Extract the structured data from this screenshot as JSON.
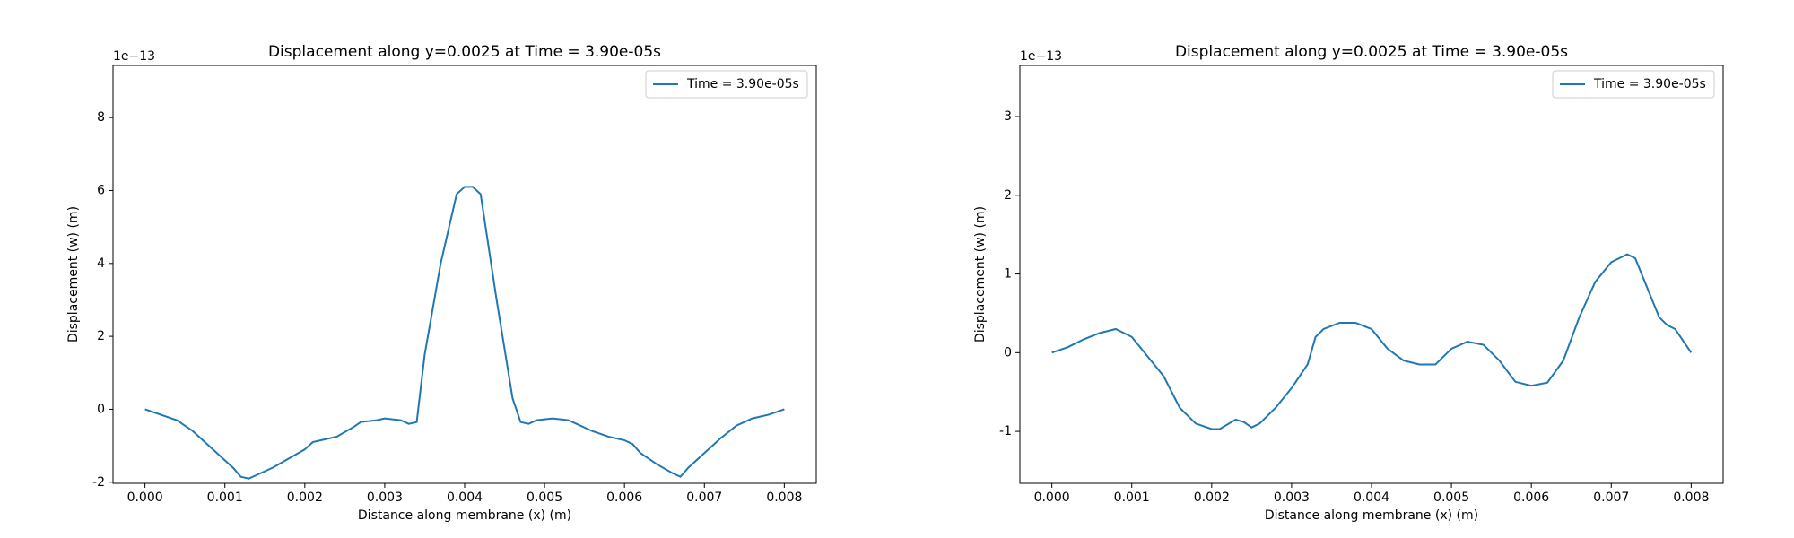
{
  "chart_data": [
    {
      "type": "line",
      "title": "Displacement along y=0.0025 at Time = 3.90e-05s",
      "xlabel": "Distance along membrane (x) (m)",
      "ylabel": "Displacement (w) (m)",
      "y_offset_label": "1e−13",
      "legend": "upper right",
      "xlim": [
        -0.0004,
        0.0084
      ],
      "ylim": [
        -2.03,
        9.43
      ],
      "xticks": [
        {
          "value": 0,
          "label": "0.000"
        },
        {
          "value": 0.001,
          "label": "0.001"
        },
        {
          "value": 0.002,
          "label": "0.002"
        },
        {
          "value": 0.003,
          "label": "0.003"
        },
        {
          "value": 0.004,
          "label": "0.004"
        },
        {
          "value": 0.005,
          "label": "0.005"
        },
        {
          "value": 0.006,
          "label": "0.006"
        },
        {
          "value": 0.007,
          "label": "0.007"
        },
        {
          "value": 0.008,
          "label": "0.008"
        }
      ],
      "yticks": [
        -2,
        0,
        2,
        4,
        6,
        8
      ],
      "x": [
        0,
        0.0002,
        0.0004,
        0.0006,
        0.0008,
        0.001,
        0.0011,
        0.0012,
        0.0013,
        0.0014,
        0.0016,
        0.0018,
        0.002,
        0.0021,
        0.0022,
        0.0024,
        0.0026,
        0.0027,
        0.0029,
        0.003,
        0.0032,
        0.0033,
        0.0034,
        0.0035,
        0.0037,
        0.0039,
        0.004,
        0.0041,
        0.0042,
        0.0044,
        0.0046,
        0.0047,
        0.0048,
        0.0049,
        0.0051,
        0.0053,
        0.0054,
        0.0056,
        0.0058,
        0.006,
        0.0061,
        0.0062,
        0.0064,
        0.0066,
        0.0067,
        0.0068,
        0.007,
        0.0072,
        0.0074,
        0.0076,
        0.0078,
        0.008
      ],
      "series": [
        {
          "name": "Time = 3.90e-05s",
          "color": "#1f77b4",
          "values": [
            0,
            -0.15,
            -0.3,
            -0.6,
            -1.0,
            -1.4,
            -1.6,
            -1.85,
            -1.9,
            -1.8,
            -1.6,
            -1.35,
            -1.1,
            -0.9,
            -0.85,
            -0.75,
            -0.5,
            -0.35,
            -0.3,
            -0.25,
            -0.3,
            -0.4,
            -0.35,
            1.5,
            4.0,
            5.9,
            6.1,
            6.1,
            5.9,
            3.0,
            0.3,
            -0.35,
            -0.4,
            -0.3,
            -0.25,
            -0.3,
            -0.4,
            -0.6,
            -0.75,
            -0.85,
            -0.95,
            -1.2,
            -1.5,
            -1.75,
            -1.85,
            -1.6,
            -1.2,
            -0.8,
            -0.45,
            -0.25,
            -0.15,
            0
          ]
        }
      ]
    },
    {
      "type": "line",
      "title": "Displacement along y=0.0025 at Time = 3.90e-05s",
      "xlabel": "Distance along membrane (x) (m)",
      "ylabel": "Displacement (w) (m)",
      "y_offset_label": "1e−13",
      "legend": "upper right",
      "xlim": [
        -0.0004,
        0.0084
      ],
      "ylim": [
        -1.66,
        3.65
      ],
      "xticks": [
        {
          "value": 0,
          "label": "0.000"
        },
        {
          "value": 0.001,
          "label": "0.001"
        },
        {
          "value": 0.002,
          "label": "0.002"
        },
        {
          "value": 0.003,
          "label": "0.003"
        },
        {
          "value": 0.004,
          "label": "0.004"
        },
        {
          "value": 0.005,
          "label": "0.005"
        },
        {
          "value": 0.006,
          "label": "0.006"
        },
        {
          "value": 0.007,
          "label": "0.007"
        },
        {
          "value": 0.008,
          "label": "0.008"
        }
      ],
      "yticks": [
        -1,
        0,
        1,
        2,
        3
      ],
      "x": [
        0,
        0.0002,
        0.0004,
        0.0006,
        0.0008,
        0.001,
        0.0012,
        0.0014,
        0.0016,
        0.0018,
        0.002,
        0.0021,
        0.0023,
        0.0024,
        0.0025,
        0.0026,
        0.0028,
        0.003,
        0.0032,
        0.0033,
        0.0034,
        0.0036,
        0.0038,
        0.004,
        0.0042,
        0.0044,
        0.0046,
        0.0048,
        0.005,
        0.0052,
        0.0054,
        0.0056,
        0.0058,
        0.006,
        0.0062,
        0.0064,
        0.0066,
        0.0068,
        0.007,
        0.0072,
        0.0073,
        0.0074,
        0.0076,
        0.0077,
        0.0078,
        0.0079,
        0.008
      ],
      "series": [
        {
          "name": "Time = 3.90e-05s",
          "color": "#1f77b4",
          "values": [
            0,
            0.07,
            0.17,
            0.25,
            0.3,
            0.2,
            -0.05,
            -0.3,
            -0.7,
            -0.9,
            -0.97,
            -0.97,
            -0.85,
            -0.88,
            -0.95,
            -0.9,
            -0.7,
            -0.45,
            -0.15,
            0.2,
            0.3,
            0.38,
            0.38,
            0.3,
            0.05,
            -0.1,
            -0.15,
            -0.15,
            0.05,
            0.14,
            0.1,
            -0.1,
            -0.37,
            -0.42,
            -0.38,
            -0.1,
            0.45,
            0.9,
            1.15,
            1.25,
            1.2,
            0.95,
            0.45,
            0.35,
            0.3,
            0.15,
            0
          ]
        }
      ]
    }
  ]
}
